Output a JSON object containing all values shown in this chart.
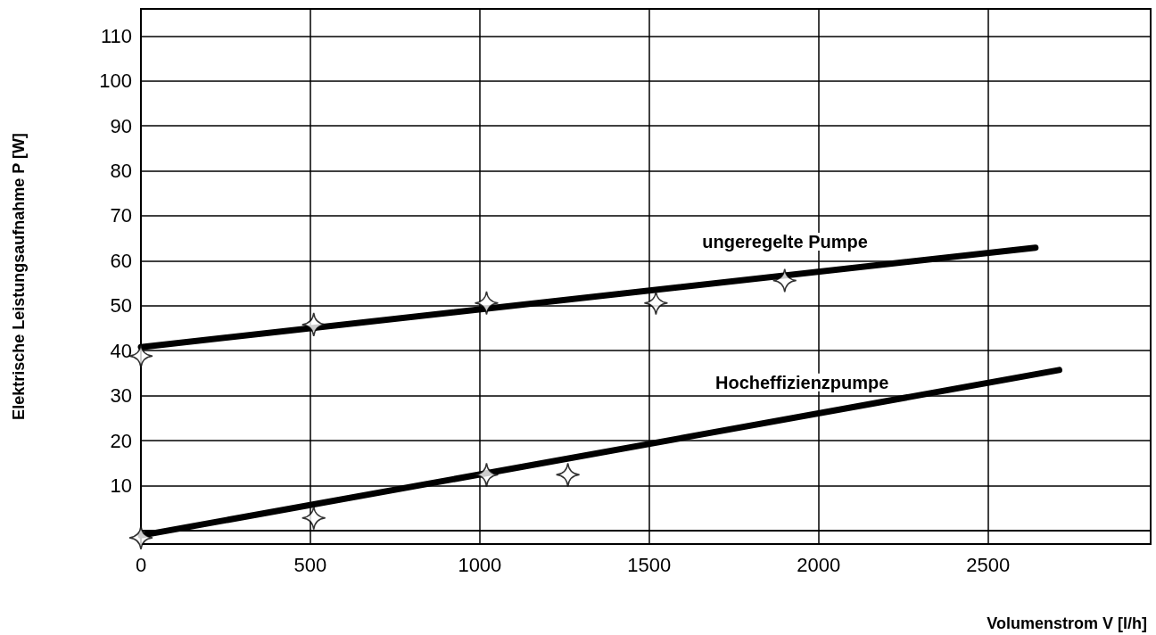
{
  "chart_data": {
    "type": "line",
    "xlabel": "Volumenstrom V [l/h]",
    "ylabel": "Elektrische Leistungsaufnahme P [W]",
    "xlim": [
      0,
      2980
    ],
    "xticks": [
      0,
      500,
      1000,
      1500,
      2000,
      2500
    ],
    "ylim": [
      -3,
      116
    ],
    "yticks": [
      10,
      20,
      30,
      40,
      50,
      60,
      70,
      80,
      90,
      100,
      110
    ],
    "grid": true,
    "legend": false,
    "series": [
      {
        "name": "ungeregelte Pumpe",
        "marker": "none",
        "color": "#000000",
        "x": [
          0,
          2640
        ],
        "values": [
          40.8,
          62.9
        ]
      },
      {
        "name": "Hocheffizienzpumpe",
        "marker": "none",
        "color": "#000000",
        "x": [
          0,
          2710
        ],
        "values": [
          -1.1,
          35.7
        ]
      },
      {
        "type": "scatter",
        "marker": "star",
        "color": "#000000",
        "x": [
          0,
          510,
          1020,
          1520,
          1900
        ],
        "values": [
          38.8,
          45.8,
          50.6,
          50.6,
          55.6
        ]
      },
      {
        "type": "scatter",
        "marker": "star",
        "color": "#000000",
        "x": [
          0,
          510,
          1020,
          1260
        ],
        "values": [
          -1.6,
          2.8,
          12.4,
          12.4
        ]
      }
    ]
  }
}
